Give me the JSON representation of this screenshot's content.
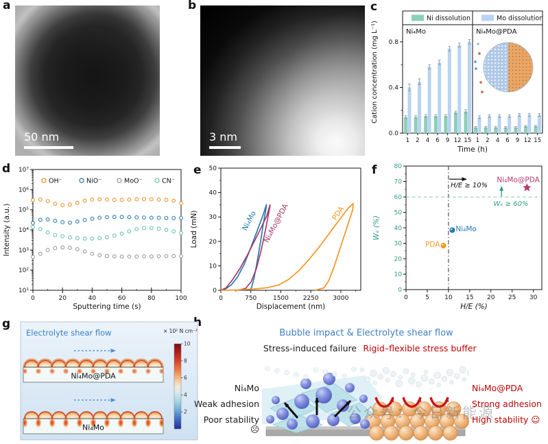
{
  "figure": {
    "panel_letters": {
      "a": "a",
      "b": "b",
      "c": "c",
      "d": "d",
      "e": "e",
      "f": "f",
      "g": "g",
      "h": "h"
    }
  },
  "panel_a": {
    "scale_bar": "50 nm"
  },
  "panel_b": {
    "scale_bar": "3 nm"
  },
  "panel_g": {
    "title": "Electrolyte shear flow",
    "title_color": "#3b82c4",
    "colorbar_label": "× 10² N cm⁻²",
    "colorbar_ticks": [
      10,
      8,
      6,
      4,
      2
    ],
    "strip_labels": [
      "Ni₄Mo@PDA",
      "Ni₄Mo"
    ]
  },
  "panel_h": {
    "title": "Bubble impact & Electrolyte shear flow",
    "accent_blue": "#3f7fc1",
    "accent_red": "#c00000",
    "left_heading": "Stress-induced failure",
    "right_heading": "Rigid–flexible stress buffer",
    "left_labels": [
      "Ni₄Mo",
      "Weak adhesion",
      "Poor stability ☹"
    ],
    "right_labels": [
      "Ni₄Mo@PDA",
      "Strong adhesion",
      "High stability ☺"
    ],
    "watermark": "公众号：今日新能源"
  },
  "chart_data": [
    {
      "panel": "c",
      "type": "bar",
      "xlabel": "Time (h)",
      "ylabel": "Cation concentration (mg L⁻¹)",
      "ylim": [
        0,
        0.95
      ],
      "yticks": [
        0,
        0.4,
        0.8
      ],
      "legend": [
        {
          "label": "Ni dissolution",
          "color": "#8bd0b6"
        },
        {
          "label": "Mo dissolution",
          "color": "#b9d3f2"
        }
      ],
      "groups": [
        {
          "label": "Ni₄Mo",
          "categories": [
            1,
            2,
            4,
            6,
            9,
            12,
            15
          ],
          "series": [
            {
              "name": "Ni dissolution",
              "values": [
                0.14,
                0.14,
                0.15,
                0.15,
                0.15,
                0.18,
                0.19
              ],
              "errors": [
                0.012,
                0.012,
                0.012,
                0.012,
                0.012,
                0.012,
                0.015
              ]
            },
            {
              "name": "Mo dissolution",
              "values": [
                0.4,
                0.45,
                0.58,
                0.62,
                0.74,
                0.77,
                0.8
              ],
              "errors": [
                0.03,
                0.025,
                0.02,
                0.02,
                0.02,
                0.018,
                0.02
              ]
            }
          ]
        },
        {
          "label": "Ni₄Mo@PDA",
          "categories": [
            1,
            2,
            4,
            6,
            9,
            12,
            15
          ],
          "series": [
            {
              "name": "Ni dissolution",
              "values": [
                0.05,
                0.05,
                0.05,
                0.05,
                0.05,
                0.06,
                0.06
              ],
              "errors": [
                0.008,
                0.008,
                0.008,
                0.008,
                0.008,
                0.008,
                0.008
              ]
            },
            {
              "name": "Mo dissolution",
              "values": [
                0.14,
                0.15,
                0.15,
                0.15,
                0.16,
                0.16,
                0.16
              ],
              "errors": [
                0.012,
                0.012,
                0.012,
                0.012,
                0.012,
                0.012,
                0.012
              ]
            }
          ]
        }
      ]
    },
    {
      "panel": "d",
      "type": "scatter",
      "xlabel": "Sputtering time (s)",
      "ylabel": "Intensity (a.u.)",
      "yscale": "log",
      "ylim_log": [
        1,
        7
      ],
      "ytick_labels": [
        "10¹",
        "10²",
        "10³",
        "10⁴",
        "10⁵",
        "10⁶",
        "10⁷"
      ],
      "xlim": [
        0,
        100
      ],
      "xticks": [
        0,
        20,
        40,
        60,
        80,
        100
      ],
      "x": [
        0,
        5,
        10,
        15,
        20,
        25,
        30,
        35,
        40,
        45,
        50,
        55,
        60,
        65,
        70,
        75,
        80,
        85,
        90,
        95,
        100
      ],
      "series": [
        {
          "name": "OH⁻",
          "color": "#f0922b",
          "values": [
            300000,
            320000,
            270000,
            200000,
            170000,
            180000,
            220000,
            280000,
            320000,
            330000,
            320000,
            310000,
            310000,
            320000,
            330000,
            340000,
            330000,
            320000,
            310000,
            280000,
            210000
          ]
        },
        {
          "name": "NiO⁻",
          "color": "#2f7cb5",
          "values": [
            22000,
            32000,
            33000,
            28000,
            24000,
            23000,
            26000,
            31000,
            36000,
            40000,
            43000,
            44000,
            44000,
            43000,
            42000,
            41000,
            40000,
            40000,
            39000,
            39000,
            39000
          ]
        },
        {
          "name": "MoO⁻",
          "color": "#9a9a9a",
          "values": [
            450,
            650,
            1000,
            1250,
            1350,
            1300,
            1100,
            850,
            650,
            550,
            500,
            480,
            470,
            470,
            470,
            480,
            480,
            490,
            500,
            500,
            500
          ]
        },
        {
          "name": "CN⁻",
          "color": "#6cc4b4",
          "values": [
            14000,
            11000,
            7500,
            5500,
            4800,
            4200,
            3900,
            3700,
            3700,
            3900,
            4300,
            5200,
            6500,
            8500,
            11000,
            12500,
            12500,
            11500,
            10000,
            8500,
            7000
          ]
        }
      ]
    },
    {
      "panel": "e",
      "type": "line",
      "xlabel": "Displacement (nm)",
      "ylabel": "Load (mN)",
      "xlim": [
        0,
        3500
      ],
      "xticks": [
        0,
        750,
        1500,
        2250,
        3000
      ],
      "ylim": [
        0,
        50
      ],
      "yticks": [
        0,
        10,
        20,
        30,
        40,
        50
      ],
      "series": [
        {
          "name": "Ni₄Mo",
          "color": "#2779b0",
          "label_pos": [
            760,
            28
          ],
          "label_angle": -62,
          "points": [
            [
              0,
              0
            ],
            [
              120,
              0.6
            ],
            [
              260,
              2.2
            ],
            [
              420,
              5.5
            ],
            [
              580,
              10.5
            ],
            [
              740,
              17
            ],
            [
              900,
              24
            ],
            [
              1050,
              30.5
            ],
            [
              1140,
              35
            ],
            [
              1135,
              34
            ],
            [
              1060,
              27
            ],
            [
              980,
              18.5
            ],
            [
              900,
              11
            ],
            [
              830,
              5
            ],
            [
              775,
              1.5
            ],
            [
              735,
              0
            ]
          ]
        },
        {
          "name": "Ni₄Mo@PDA",
          "color": "#a63a66",
          "label_pos": [
            1430,
            27
          ],
          "label_angle": -62,
          "points": [
            [
              0,
              0
            ],
            [
              130,
              1
            ],
            [
              300,
              4.5
            ],
            [
              480,
              9
            ],
            [
              650,
              14
            ],
            [
              820,
              19.5
            ],
            [
              990,
              25
            ],
            [
              1150,
              30.5
            ],
            [
              1230,
              35
            ],
            [
              1225,
              34
            ],
            [
              1120,
              25
            ],
            [
              1010,
              16.5
            ],
            [
              890,
              9
            ],
            [
              760,
              3.5
            ],
            [
              620,
              0.8
            ],
            [
              445,
              0
            ]
          ]
        },
        {
          "name": "PDA",
          "color": "#f79321",
          "label_pos": [
            2980,
            31
          ],
          "label_angle": -56,
          "points": [
            [
              0,
              0
            ],
            [
              400,
              0.15
            ],
            [
              800,
              0.5
            ],
            [
              1150,
              1
            ],
            [
              1450,
              2.2
            ],
            [
              1700,
              4.5
            ],
            [
              1950,
              8
            ],
            [
              2200,
              12.5
            ],
            [
              2450,
              17.5
            ],
            [
              2700,
              23
            ],
            [
              2950,
              28.5
            ],
            [
              3180,
              33.5
            ],
            [
              3310,
              35.5
            ],
            [
              3300,
              33
            ],
            [
              3160,
              26
            ],
            [
              3000,
              18
            ],
            [
              2840,
              10
            ],
            [
              2700,
              4
            ],
            [
              2580,
              1
            ],
            [
              2360,
              0
            ]
          ]
        }
      ]
    },
    {
      "panel": "f",
      "type": "scatter",
      "xlabel": "H/E (%)",
      "ylabel": "Wₑ (%)",
      "xlim": [
        0,
        32
      ],
      "xticks": [
        0,
        5,
        10,
        15,
        20,
        25,
        30
      ],
      "ylim": [
        0,
        80
      ],
      "yticks": [
        0,
        10,
        20,
        30,
        40,
        50,
        60,
        70,
        80
      ],
      "axis_color": "#2f9c8a",
      "ref_lines": {
        "vline_x": 10,
        "vline_color": "#333333",
        "hline_y": 60,
        "hline_color": "#86c7b8"
      },
      "arrows": [
        {
          "from": [
            10.2,
            71.5
          ],
          "to": [
            14.2,
            71.5
          ],
          "color": "#111111"
        },
        {
          "from": [
            22.5,
            60.4
          ],
          "to": [
            22.5,
            66.8
          ],
          "color": "#2f9c8a"
        }
      ],
      "annotations": [
        {
          "text": "H/E ≥ 10%",
          "x": 10.5,
          "y": 66.3,
          "color": "#111111"
        },
        {
          "text": "Wₑ ≥ 60%",
          "x": 20.6,
          "y": 54.2,
          "color": "#2f9c8a"
        }
      ],
      "points": [
        {
          "label": "PDA",
          "x": 8.8,
          "y": 28.5,
          "color": "#f5971f",
          "marker": "circle",
          "label_pos": [
            8.0,
            27.8
          ],
          "label_anchor": "end"
        },
        {
          "label": "Ni₄Mo",
          "x": 10.9,
          "y": 38.5,
          "color": "#2779b0",
          "marker": "circle",
          "label_pos": [
            11.7,
            37.8
          ],
          "label_anchor": "start"
        },
        {
          "label": "Ni₄Mo@PDA",
          "x": 28.5,
          "y": 66.0,
          "color": "#b53a6e",
          "marker": "star",
          "label_pos": [
            21.4,
            69.6
          ],
          "label_anchor": "start"
        }
      ]
    }
  ]
}
